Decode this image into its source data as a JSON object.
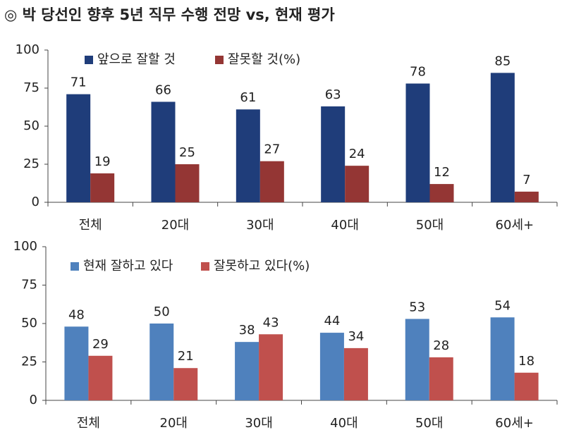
{
  "title": "◎  박 당선인 향후 5년 직무 수행 전망 vs, 현재 평가",
  "chart_data": [
    {
      "type": "bar",
      "categories": [
        "전체",
        "20대",
        "30대",
        "40대",
        "50대",
        "60세+"
      ],
      "series": [
        {
          "name": "앞으로 잘할 것",
          "color": "#1f3d7a",
          "values": [
            71,
            66,
            61,
            63,
            78,
            85
          ]
        },
        {
          "name": "잘못할 것(%)",
          "color": "#943634",
          "values": [
            19,
            25,
            27,
            24,
            12,
            7
          ]
        }
      ],
      "ylim": [
        0,
        100
      ],
      "yticks": [
        0,
        25,
        50,
        75,
        100
      ],
      "grid": false,
      "legend": "upper left"
    },
    {
      "type": "bar",
      "categories": [
        "전체",
        "20대",
        "30대",
        "40대",
        "50대",
        "60세+"
      ],
      "series": [
        {
          "name": "현재 잘하고 있다",
          "color": "#4f81bd",
          "values": [
            48,
            50,
            38,
            44,
            53,
            54
          ]
        },
        {
          "name": "잘못하고 있다(%)",
          "color": "#c0504d",
          "values": [
            29,
            21,
            43,
            34,
            28,
            18
          ]
        }
      ],
      "ylim": [
        0,
        100
      ],
      "yticks": [
        0,
        25,
        50,
        75,
        100
      ],
      "grid": false,
      "legend": "upper left"
    }
  ]
}
